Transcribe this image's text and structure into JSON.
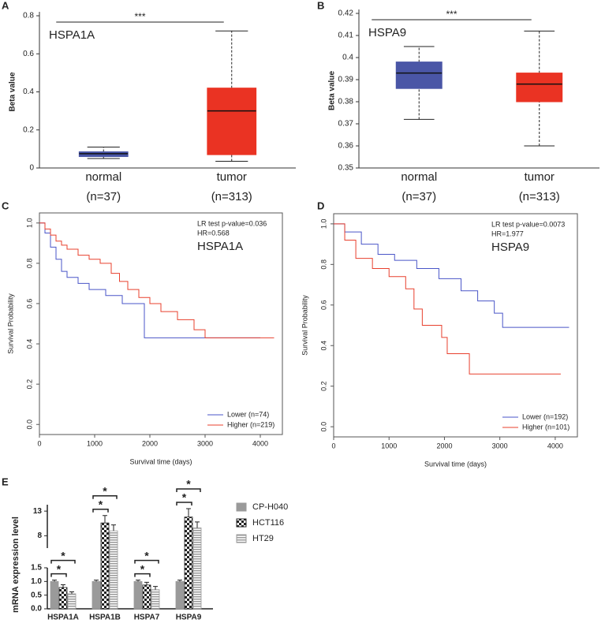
{
  "chart_data": [
    {
      "type": "box",
      "panel": "A",
      "label": "HSPA1A",
      "ylabel": "Beta value",
      "significance": "***",
      "categories": [
        "normal",
        "tumor"
      ],
      "n_labels": [
        "(n=37)",
        "(n=313)"
      ],
      "boxes": [
        {
          "whislo": 0.05,
          "q1": 0.06,
          "med": 0.075,
          "q3": 0.085,
          "whishi": 0.11,
          "color": "#4a56a6"
        },
        {
          "whislo": 0.035,
          "q1": 0.07,
          "med": 0.3,
          "q3": 0.42,
          "whishi": 0.72,
          "color": "#ea3323"
        }
      ],
      "ylim": [
        0,
        0.8
      ],
      "yticks": [
        0,
        0.2,
        0.4,
        0.6,
        0.8
      ]
    },
    {
      "type": "box",
      "panel": "B",
      "label": "HSPA9",
      "ylabel": "Beta value",
      "significance": "***",
      "categories": [
        "normal",
        "tumor"
      ],
      "n_labels": [
        "(n=37)",
        "(n=313)"
      ],
      "boxes": [
        {
          "whislo": 0.372,
          "q1": 0.386,
          "med": 0.393,
          "q3": 0.398,
          "whishi": 0.405,
          "color": "#4a56a6"
        },
        {
          "whislo": 0.36,
          "q1": 0.38,
          "med": 0.388,
          "q3": 0.393,
          "whishi": 0.412,
          "color": "#ea3323"
        }
      ],
      "ylim": [
        0.35,
        0.42
      ],
      "yticks": [
        0.35,
        0.36,
        0.37,
        0.38,
        0.39,
        0.4,
        0.41,
        0.42
      ]
    },
    {
      "type": "km",
      "panel": "C",
      "label": "HSPA1A",
      "annotation": [
        "LR test p-value=0.036",
        "HR=0.568"
      ],
      "xlabel": "Survival time (days)",
      "ylabel": "Survival Probability",
      "legend": "lower right",
      "xlim": [
        0,
        4400
      ],
      "xticks": [
        0,
        1000,
        2000,
        3000,
        4000
      ],
      "ylim": [
        -0.05,
        1.05
      ],
      "yticks": [
        {
          "value": 0,
          "label": "0.0"
        },
        0.2,
        0.4,
        0.6,
        0.8,
        {
          "value": 1,
          "label": "1.0"
        }
      ],
      "series": [
        {
          "name": "Lower (n=74)",
          "color": "#4a56c8",
          "x": [
            0,
            100,
            100,
            200,
            200,
            300,
            300,
            400,
            400,
            500,
            500,
            700,
            700,
            900,
            900,
            1200,
            1200,
            1500,
            1500,
            1900,
            1900,
            4000
          ],
          "values": [
            1,
            1,
            0.95,
            0.95,
            0.88,
            0.88,
            0.82,
            0.82,
            0.76,
            0.76,
            0.73,
            0.73,
            0.7,
            0.7,
            0.67,
            0.67,
            0.64,
            0.64,
            0.6,
            0.6,
            0.43,
            0.43
          ]
        },
        {
          "name": "Higher (n=219)",
          "color": "#e8402e",
          "x": [
            0,
            100,
            100,
            200,
            200,
            300,
            300,
            400,
            400,
            500,
            500,
            700,
            700,
            900,
            900,
            1100,
            1100,
            1300,
            1300,
            1450,
            1450,
            1600,
            1600,
            1800,
            1800,
            2000,
            2000,
            2200,
            2200,
            2500,
            2500,
            2800,
            2800,
            3000,
            3000,
            4250
          ],
          "values": [
            1,
            1,
            0.97,
            0.97,
            0.94,
            0.94,
            0.91,
            0.91,
            0.89,
            0.89,
            0.87,
            0.87,
            0.84,
            0.84,
            0.82,
            0.82,
            0.8,
            0.8,
            0.75,
            0.75,
            0.71,
            0.71,
            0.67,
            0.67,
            0.63,
            0.63,
            0.6,
            0.6,
            0.56,
            0.56,
            0.52,
            0.52,
            0.47,
            0.47,
            0.43,
            0.43
          ]
        }
      ]
    },
    {
      "type": "km",
      "panel": "D",
      "label": "HSPA9",
      "annotation": [
        "LR test p-value=0.0073",
        "HR=1.977"
      ],
      "xlabel": "Survival time (days)",
      "ylabel": "Survival Probability",
      "legend": "lower right",
      "xlim": [
        0,
        4400
      ],
      "xticks": [
        0,
        1000,
        2000,
        3000,
        4000
      ],
      "ylim": [
        -0.05,
        1.05
      ],
      "yticks": [
        {
          "value": 0,
          "label": "0.0"
        },
        0.2,
        0.4,
        0.6,
        0.8,
        {
          "value": 1,
          "label": "1.0"
        }
      ],
      "series": [
        {
          "name": "Lower (n=192)",
          "color": "#4a56c8",
          "x": [
            0,
            200,
            200,
            500,
            500,
            800,
            800,
            1100,
            1100,
            1500,
            1500,
            1900,
            1900,
            2300,
            2300,
            2600,
            2600,
            2900,
            2900,
            3050,
            3050,
            4250
          ],
          "values": [
            1,
            1,
            0.96,
            0.96,
            0.9,
            0.9,
            0.85,
            0.85,
            0.82,
            0.82,
            0.78,
            0.78,
            0.73,
            0.73,
            0.67,
            0.67,
            0.62,
            0.62,
            0.56,
            0.56,
            0.49,
            0.49
          ]
        },
        {
          "name": "Higher (n=101)",
          "color": "#e8402e",
          "x": [
            0,
            200,
            200,
            400,
            400,
            700,
            700,
            1000,
            1000,
            1300,
            1300,
            1450,
            1450,
            1600,
            1600,
            1950,
            1950,
            2050,
            2050,
            2450,
            2450,
            4100
          ],
          "values": [
            1,
            1,
            0.92,
            0.92,
            0.83,
            0.83,
            0.78,
            0.78,
            0.74,
            0.74,
            0.68,
            0.68,
            0.58,
            0.58,
            0.5,
            0.5,
            0.44,
            0.44,
            0.36,
            0.36,
            0.26,
            0.26
          ]
        }
      ]
    },
    {
      "type": "bar",
      "panel": "E",
      "ylabel": "mRNA expression level",
      "legend": "upper right",
      "categories": [
        "HSPA1A",
        "HSPA1B",
        "HSPA7",
        "HSPA9"
      ],
      "ylim": [
        0,
        14.3
      ],
      "ybreak": [
        1.5,
        5.5
      ],
      "yticks": [
        {
          "value": 0,
          "label": "0.0"
        },
        0.5,
        {
          "value": 1,
          "label": "1.0"
        },
        1.5,
        8,
        13
      ],
      "series": [
        {
          "name": "CP-H040",
          "color": "#9a9a9a",
          "pattern": "solid",
          "values": [
            1.0,
            1.0,
            1.0,
            1.0
          ],
          "errors": [
            0.05,
            0.05,
            0.05,
            0.05
          ]
        },
        {
          "name": "HCT116",
          "color": "#222222",
          "pattern": "checker",
          "values": [
            0.78,
            10.6,
            0.87,
            11.8
          ],
          "errors": [
            0.1,
            1.5,
            0.1,
            1.7
          ]
        },
        {
          "name": "HT29",
          "color": "#9a9a9a",
          "pattern": "stripes",
          "values": [
            0.55,
            9.0,
            0.7,
            9.6
          ],
          "errors": [
            0.07,
            1.2,
            0.12,
            1.2
          ]
        }
      ],
      "significance": [
        [
          "*",
          "*"
        ],
        [
          "*",
          "*"
        ],
        [
          "*",
          "*"
        ],
        [
          "*",
          "*"
        ]
      ]
    }
  ]
}
